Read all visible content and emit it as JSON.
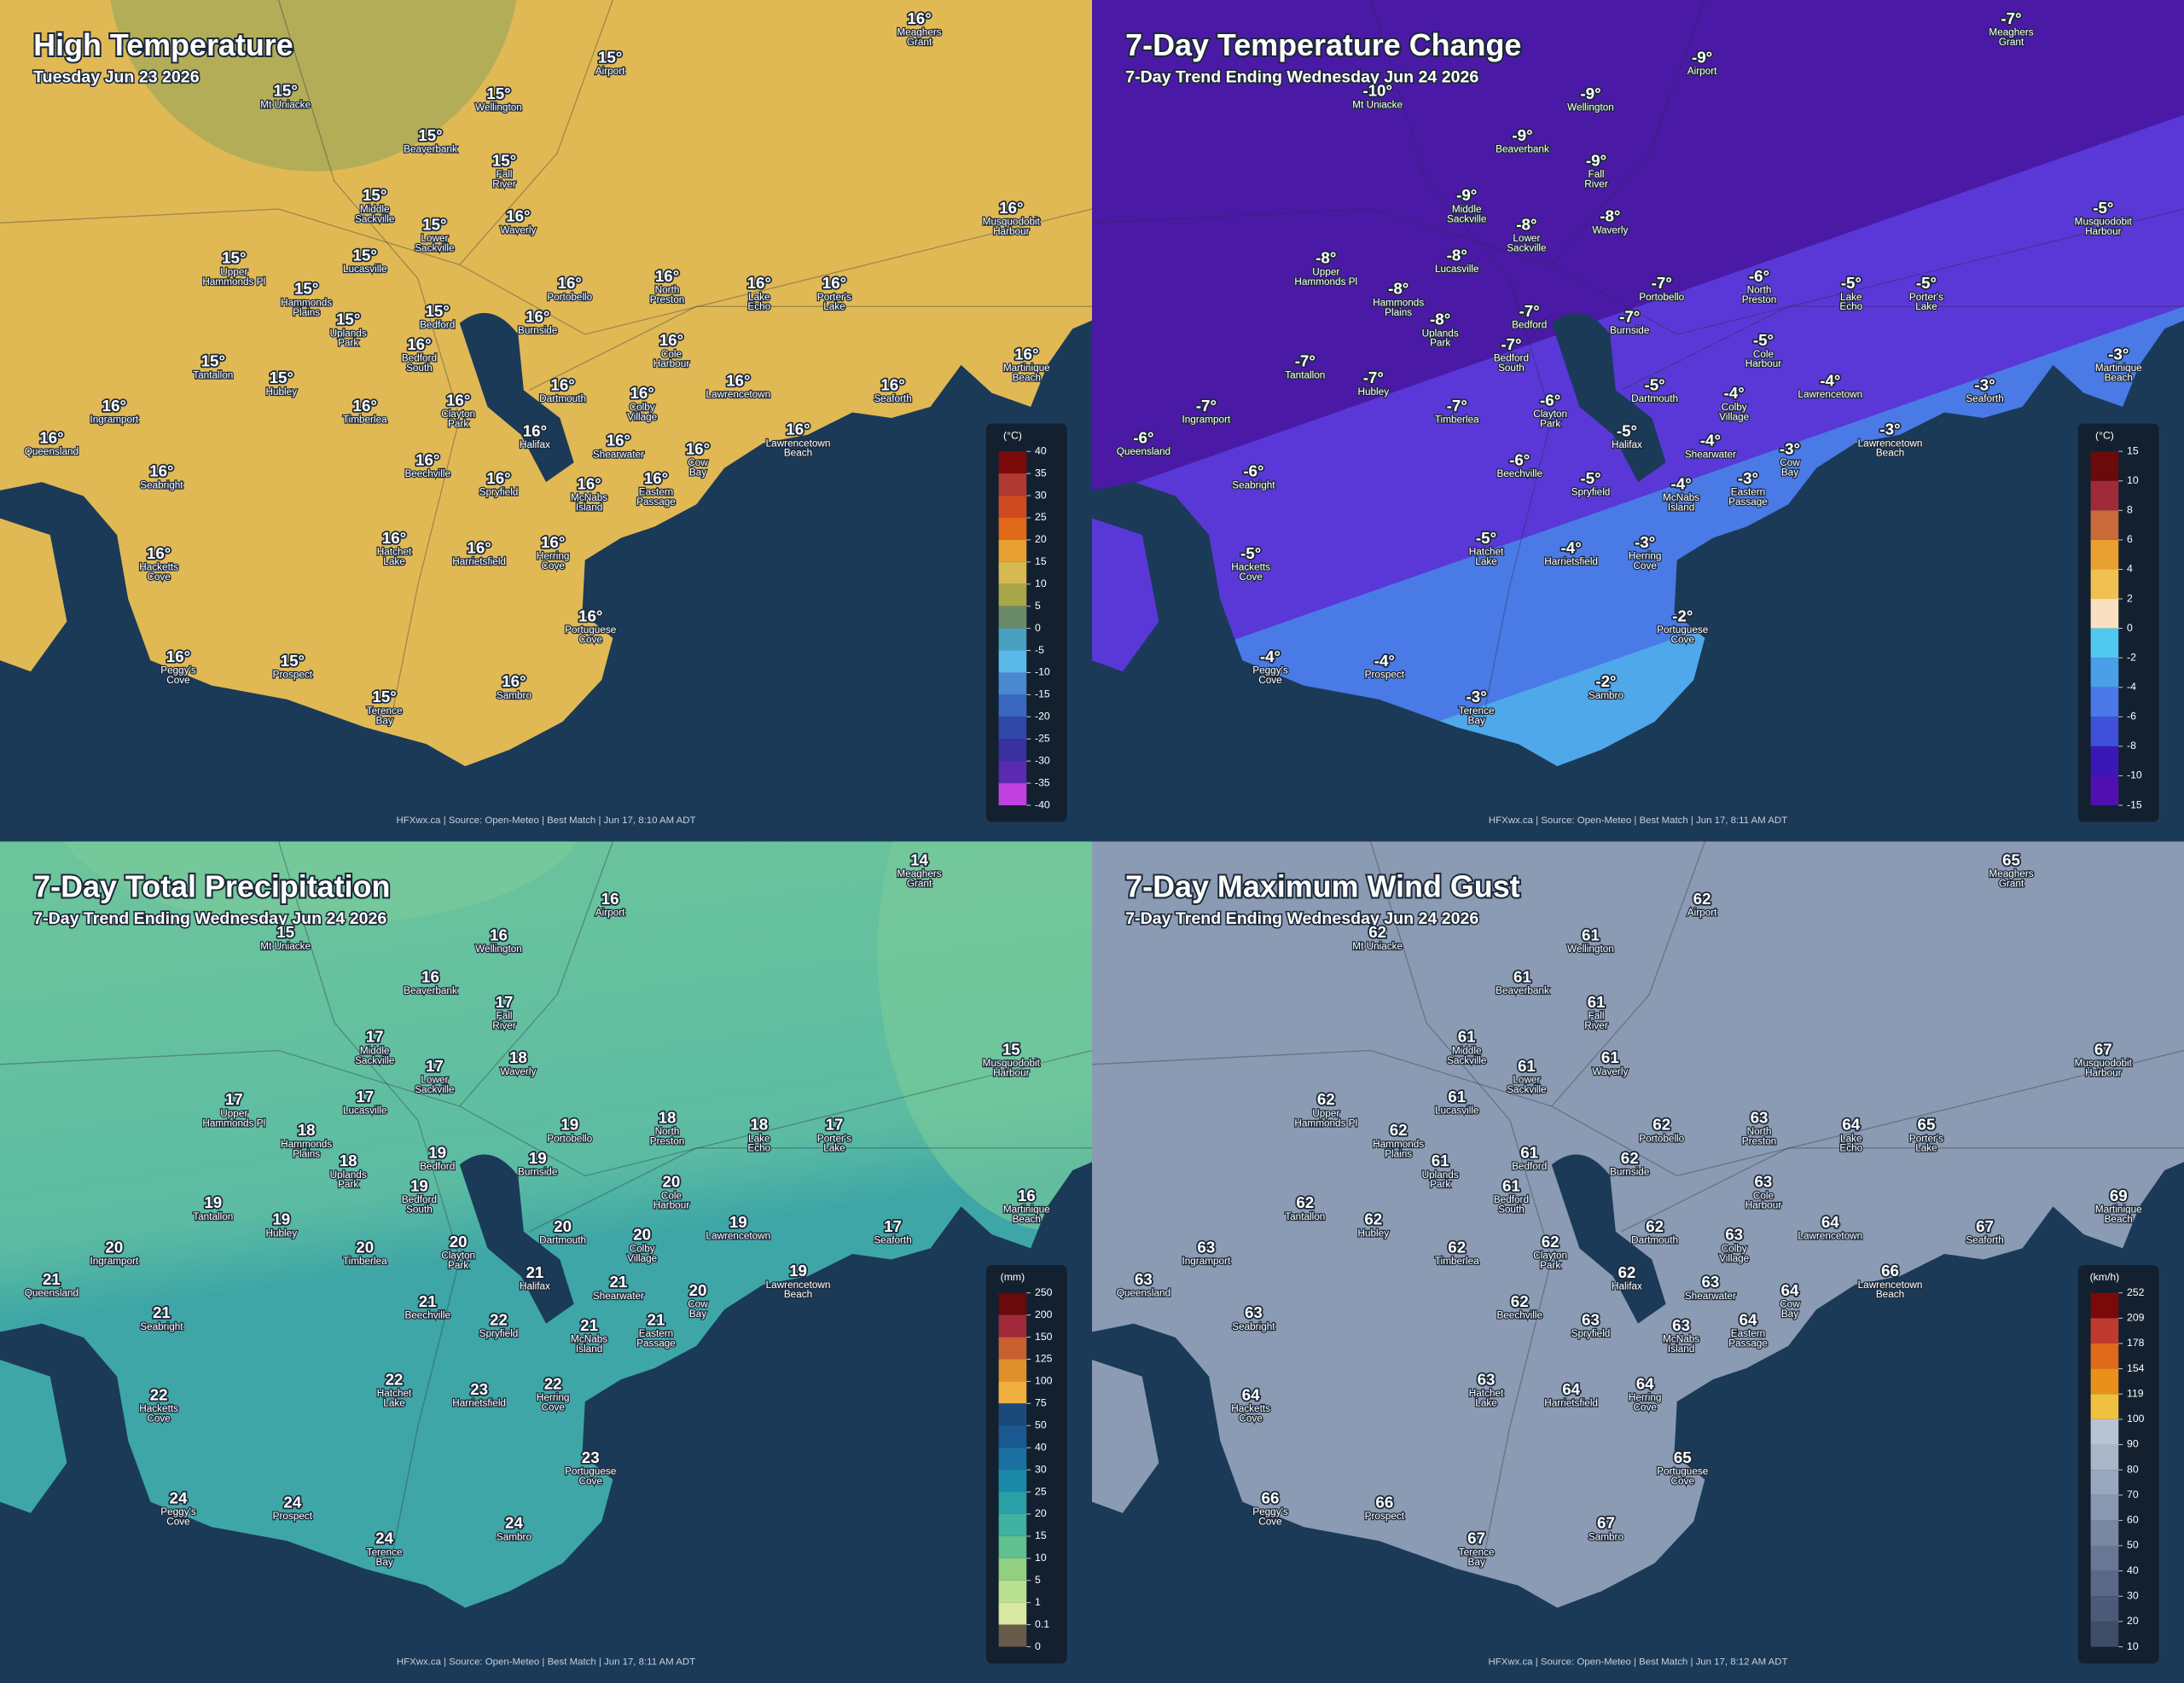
{
  "places": [
    [
      "Meaghers",
      "Grant"
    ],
    [
      "Airport"
    ],
    [
      "Mt Uniacke"
    ],
    [
      "Wellington"
    ],
    [
      "Beaverbank"
    ],
    [
      "Fall",
      "River"
    ],
    [
      "Middle",
      "Sackville"
    ],
    [
      "Waverly"
    ],
    [
      "Lower",
      "Sackville"
    ],
    [
      "Musquodobit",
      "Harbour"
    ],
    [
      "Upper",
      "Hammonds Pl"
    ],
    [
      "Lucasville"
    ],
    [
      "Portobello"
    ],
    [
      "North",
      "Preston"
    ],
    [
      "Lake",
      "Echo"
    ],
    [
      "Porter's",
      "Lake"
    ],
    [
      "Hammonds",
      "Plains"
    ],
    [
      "Bedford"
    ],
    [
      "Uplands",
      "Park"
    ],
    [
      "Burnside"
    ],
    [
      "Bedford",
      "South"
    ],
    [
      "Cole",
      "Harbour"
    ],
    [
      "Martinique",
      "Beach"
    ],
    [
      "Tantallon"
    ],
    [
      "Hubley"
    ],
    [
      "Dartmouth"
    ],
    [
      "Lawrencetown"
    ],
    [
      "Seaforth"
    ],
    [
      "Ingramport"
    ],
    [
      "Timberlea"
    ],
    [
      "Colby",
      "Village"
    ],
    [
      "Clayton",
      "Park"
    ],
    [
      "Halifax"
    ],
    [
      "Lawrencetown",
      "Beach"
    ],
    [
      "Queensland"
    ],
    [
      "Shearwater"
    ],
    [
      "Cow",
      "Bay"
    ],
    [
      "Beechville"
    ],
    [
      "Seabright"
    ],
    [
      "Spryfield"
    ],
    [
      "McNabs",
      "Island"
    ],
    [
      "Eastern",
      "Passage"
    ],
    [
      "Hatchet",
      "Lake"
    ],
    [
      "Harrietsfield"
    ],
    [
      "Herring",
      "Cove"
    ],
    [
      "Hacketts",
      "Cove"
    ],
    [
      "Portuguese",
      "Cove"
    ],
    [
      "Peggy's",
      "Cove"
    ],
    [
      "Prospect"
    ],
    [
      "Sambro"
    ],
    [
      "Terence",
      "Bay"
    ]
  ],
  "panels": [
    {
      "title": "High Temperature",
      "subtitle": "Tuesday Jun 23 2026",
      "values": [
        16,
        15,
        15,
        15,
        15,
        15,
        15,
        16,
        15,
        16,
        15,
        15,
        16,
        16,
        16,
        16,
        15,
        15,
        15,
        16,
        16,
        16,
        16,
        15,
        15,
        16,
        16,
        16,
        16,
        16,
        16,
        16,
        16,
        16,
        16,
        16,
        16,
        16,
        16,
        16,
        16,
        16,
        16,
        16,
        16,
        16,
        16,
        16,
        15,
        16,
        15
      ],
      "value_labels": [
        "16°",
        "15°",
        "15°",
        "15°",
        "15°",
        "15°",
        "15°",
        "16°",
        "15°",
        "16°",
        "15°",
        "15°",
        "16°",
        "16°",
        "16°",
        "16°",
        "15°",
        "15°",
        "15°",
        "16°",
        "16°",
        "16°",
        "16°",
        "15°",
        "15°",
        "16°",
        "16°",
        "16°",
        "16°",
        "16°",
        "16°",
        "16°",
        "16°",
        "16°",
        "16°",
        "16°",
        "16°",
        "16°",
        "16°",
        "16°",
        "16°",
        "16°",
        "16°",
        "16°",
        "16°",
        "16°",
        "16°",
        "16°",
        "15°",
        "16°",
        "15°"
      ],
      "legend": {
        "unit": "(°C)",
        "ticks": [
          40,
          35,
          30,
          25,
          20,
          15,
          10,
          5,
          0,
          -5,
          -10,
          -15,
          -20,
          -25,
          -30,
          -35,
          -40
        ],
        "colors": [
          "#7a0a0a",
          "#b03a30",
          "#d04a22",
          "#e06a1a",
          "#e8a030",
          "#d8b850",
          "#a8a848",
          "#6a8a6a",
          "#4aa0c0",
          "#5ab8e8",
          "#4a88d0",
          "#3a68c0",
          "#3048a8",
          "#3a30a0",
          "#5a2ab0",
          "#c040e0"
        ]
      },
      "footer": "HFXwx.ca | Source: Open-Meteo | Best Match | Jun 17, 8:10 AM ADT"
    },
    {
      "title": "7-Day Temperature Change",
      "subtitle": "7-Day Trend Ending Wednesday Jun 24 2026",
      "values": [
        -7,
        -9,
        -10,
        -9,
        -9,
        -9,
        -9,
        -8,
        -8,
        -5,
        -8,
        -8,
        -7,
        -6,
        -5,
        -5,
        -8,
        -7,
        -8,
        -7,
        -7,
        -5,
        -3,
        -7,
        -7,
        -5,
        -4,
        -3,
        -7,
        -7,
        -4,
        -6,
        -5,
        -3,
        -6,
        -4,
        -3,
        -6,
        -6,
        -5,
        -4,
        -3,
        -5,
        -4,
        -3,
        -5,
        -2,
        -4,
        -4,
        -2,
        -3
      ],
      "value_labels": [
        "-7°",
        "-9°",
        "-10°",
        "-9°",
        "-9°",
        "-9°",
        "-9°",
        "-8°",
        "-8°",
        "-5°",
        "-8°",
        "-8°",
        "-7°",
        "-6°",
        "-5°",
        "-5°",
        "-8°",
        "-7°",
        "-8°",
        "-7°",
        "-7°",
        "-5°",
        "-3°",
        "-7°",
        "-7°",
        "-5°",
        "-4°",
        "-3°",
        "-7°",
        "-7°",
        "-4°",
        "-6°",
        "-5°",
        "-3°",
        "-6°",
        "-4°",
        "-3°",
        "-6°",
        "-6°",
        "-5°",
        "-4°",
        "-3°",
        "-5°",
        "-4°",
        "-3°",
        "-5°",
        "-2°",
        "-4°",
        "-4°",
        "-2°",
        "-3°"
      ],
      "legend": {
        "unit": "(°C)",
        "ticks": [
          15,
          10,
          8,
          6,
          4,
          2,
          0,
          -2,
          -4,
          -6,
          -8,
          -10,
          -15
        ],
        "colors": [
          "#6a0a0a",
          "#a02a3a",
          "#c86a3a",
          "#e8a030",
          "#f0c050",
          "#f8e0c0",
          "#50c8f0",
          "#4aa0e8",
          "#4a78e8",
          "#4050d8",
          "#3a18b8",
          "#5010b0"
        ]
      },
      "footer": "HFXwx.ca | Source: Open-Meteo | Best Match | Jun 17, 8:11 AM ADT"
    },
    {
      "title": "7-Day Total Precipitation",
      "subtitle": "7-Day Trend Ending Wednesday Jun 24 2026",
      "values": [
        14,
        16,
        15,
        16,
        16,
        17,
        17,
        18,
        17,
        15,
        17,
        17,
        19,
        18,
        18,
        17,
        18,
        19,
        18,
        19,
        19,
        20,
        16,
        19,
        19,
        20,
        19,
        17,
        20,
        20,
        20,
        20,
        21,
        19,
        21,
        21,
        20,
        21,
        21,
        22,
        21,
        21,
        22,
        23,
        22,
        22,
        23,
        24,
        24,
        24,
        24
      ],
      "legend": {
        "unit": "(mm)",
        "ticks": [
          250,
          200,
          150,
          125,
          100,
          75,
          50,
          40,
          30,
          25,
          20,
          15,
          10,
          5,
          1,
          0.1,
          0
        ],
        "colors": [
          "#6a0a0a",
          "#a02a3a",
          "#c86030",
          "#e0902a",
          "#f0b040",
          "#1a4a7a",
          "#1a5a90",
          "#1a70a0",
          "#1a8aa8",
          "#2aa0a8",
          "#40b0a0",
          "#60c090",
          "#90d080",
          "#b8e090",
          "#d8e8a0",
          "#6a5a4a"
        ]
      },
      "footer": "HFXwx.ca | Source: Open-Meteo | Best Match | Jun 17, 8:11 AM ADT"
    },
    {
      "title": "7-Day Maximum Wind Gust",
      "subtitle": "7-Day Trend Ending Wednesday Jun 24 2026",
      "values": [
        65,
        62,
        62,
        61,
        61,
        61,
        61,
        61,
        61,
        67,
        62,
        61,
        62,
        63,
        64,
        65,
        62,
        61,
        61,
        62,
        61,
        63,
        69,
        62,
        62,
        62,
        64,
        67,
        63,
        62,
        63,
        62,
        62,
        66,
        63,
        63,
        64,
        62,
        63,
        63,
        63,
        64,
        63,
        64,
        64,
        64,
        65,
        66,
        66,
        67,
        67
      ],
      "legend": {
        "unit": "(km/h)",
        "ticks": [
          252,
          209,
          178,
          154,
          119,
          100,
          90,
          80,
          70,
          60,
          50,
          40,
          30,
          20,
          10
        ],
        "colors": [
          "#7a0a0a",
          "#c03a30",
          "#e06a1a",
          "#e8901a",
          "#f0c040",
          "#b8c4d4",
          "#a8b6c8",
          "#98a8bc",
          "#8898b0",
          "#7888a2",
          "#687894",
          "#586886",
          "#4a5a78",
          "#3e4c68"
        ]
      },
      "footer": "HFXwx.ca | Source: Open-Meteo | Best Match | Jun 17, 8:12 AM ADT"
    }
  ]
}
